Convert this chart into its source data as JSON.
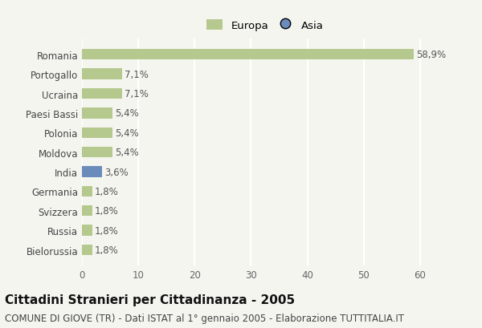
{
  "categories": [
    "Romania",
    "Portogallo",
    "Ucraina",
    "Paesi Bassi",
    "Polonia",
    "Moldova",
    "India",
    "Germania",
    "Svizzera",
    "Russia",
    "Bielorussia"
  ],
  "values": [
    58.9,
    7.1,
    7.1,
    5.4,
    5.4,
    5.4,
    3.6,
    1.8,
    1.8,
    1.8,
    1.8
  ],
  "labels": [
    "58,9%",
    "7,1%",
    "7,1%",
    "5,4%",
    "5,4%",
    "5,4%",
    "3,6%",
    "1,8%",
    "1,8%",
    "1,8%",
    "1,8%"
  ],
  "colors": [
    "#b5c98e",
    "#b5c98e",
    "#b5c98e",
    "#b5c98e",
    "#b5c98e",
    "#b5c98e",
    "#6b8cba",
    "#b5c98e",
    "#b5c98e",
    "#b5c98e",
    "#b5c98e"
  ],
  "legend_europa_color": "#b5c98e",
  "legend_asia_color": "#6b8cba",
  "xlim": [
    0,
    65
  ],
  "xticks": [
    0,
    10,
    20,
    30,
    40,
    50,
    60
  ],
  "title": "Cittadini Stranieri per Cittadinanza - 2005",
  "subtitle": "COMUNE DI GIOVE (TR) - Dati ISTAT al 1° gennaio 2005 - Elaborazione TUTTITALIA.IT",
  "title_fontsize": 11,
  "subtitle_fontsize": 8.5,
  "bg_color": "#f5f5f0",
  "bar_height": 0.55,
  "grid_color": "#ffffff",
  "label_fontsize": 8.5,
  "tick_fontsize": 8.5
}
